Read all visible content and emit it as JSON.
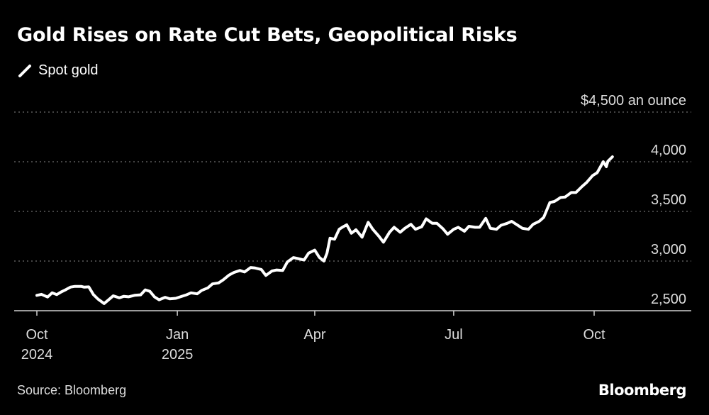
{
  "title": "Gold Rises on Rate Cut Bets, Geopolitical Risks",
  "legend": {
    "label": "Spot gold",
    "color": "#ffffff"
  },
  "source": "Source: Bloomberg",
  "brand": "Bloomberg",
  "chart_data": {
    "type": "line",
    "title": "Gold Rises on Rate Cut Bets, Geopolitical Risks",
    "ylabel": "$4,500 an ounce",
    "ylim": [
      2500,
      4500
    ],
    "grid": true,
    "legend_position": "top-left",
    "y_ticks": [
      {
        "value": 4500,
        "label": "$4,500 an ounce"
      },
      {
        "value": 4000,
        "label": "4,000"
      },
      {
        "value": 3500,
        "label": "3,500"
      },
      {
        "value": 3000,
        "label": "3,000"
      },
      {
        "value": 2500,
        "label": "2,500"
      }
    ],
    "x_ticks": [
      {
        "date": "2024-10-01",
        "label": "Oct",
        "sublabel": "2024"
      },
      {
        "date": "2025-01-01",
        "label": "Jan",
        "sublabel": "2025"
      },
      {
        "date": "2025-04-01",
        "label": "Apr",
        "sublabel": ""
      },
      {
        "date": "2025-07-01",
        "label": "Jul",
        "sublabel": ""
      },
      {
        "date": "2025-10-01",
        "label": "Oct",
        "sublabel": ""
      }
    ],
    "xlim": [
      "2024-10-01",
      "2025-11-30"
    ],
    "series": [
      {
        "name": "Spot gold",
        "color": "#ffffff",
        "x": [
          "2024-10-01",
          "2024-10-04",
          "2024-10-08",
          "2024-10-11",
          "2024-10-14",
          "2024-10-17",
          "2024-10-20",
          "2024-10-23",
          "2024-10-26",
          "2024-10-30",
          "2024-11-01",
          "2024-11-04",
          "2024-11-07",
          "2024-11-10",
          "2024-11-14",
          "2024-11-17",
          "2024-11-20",
          "2024-11-24",
          "2024-11-27",
          "2024-11-30",
          "2024-12-04",
          "2024-12-08",
          "2024-12-11",
          "2024-12-14",
          "2024-12-17",
          "2024-12-20",
          "2024-12-24",
          "2024-12-27",
          "2024-12-31",
          "2025-01-03",
          "2025-01-07",
          "2025-01-10",
          "2025-01-14",
          "2025-01-17",
          "2025-01-21",
          "2025-01-24",
          "2025-01-28",
          "2025-01-31",
          "2025-02-04",
          "2025-02-07",
          "2025-02-11",
          "2025-02-14",
          "2025-02-18",
          "2025-02-21",
          "2025-02-25",
          "2025-02-28",
          "2025-03-04",
          "2025-03-07",
          "2025-03-11",
          "2025-03-14",
          "2025-03-18",
          "2025-03-21",
          "2025-03-25",
          "2025-03-28",
          "2025-04-01",
          "2025-04-04",
          "2025-04-07",
          "2025-04-09",
          "2025-04-11",
          "2025-04-14",
          "2025-04-17",
          "2025-04-19",
          "2025-04-22",
          "2025-04-25",
          "2025-04-28",
          "2025-05-02",
          "2025-05-06",
          "2025-05-09",
          "2025-05-13",
          "2025-05-16",
          "2025-05-20",
          "2025-05-23",
          "2025-05-27",
          "2025-05-30",
          "2025-06-03",
          "2025-06-06",
          "2025-06-10",
          "2025-06-13",
          "2025-06-17",
          "2025-06-20",
          "2025-06-24",
          "2025-06-27",
          "2025-07-01",
          "2025-07-04",
          "2025-07-08",
          "2025-07-11",
          "2025-07-15",
          "2025-07-18",
          "2025-07-22",
          "2025-07-25",
          "2025-07-29",
          "2025-08-01",
          "2025-08-05",
          "2025-08-08",
          "2025-08-12",
          "2025-08-15",
          "2025-08-19",
          "2025-08-22",
          "2025-08-26",
          "2025-08-29",
          "2025-09-02",
          "2025-09-05",
          "2025-09-09",
          "2025-09-12",
          "2025-09-16",
          "2025-09-19",
          "2025-09-23",
          "2025-09-26",
          "2025-09-30",
          "2025-10-03",
          "2025-10-07",
          "2025-10-09",
          "2025-10-10",
          "2025-10-13"
        ],
        "y": [
          2655,
          2665,
          2638,
          2680,
          2662,
          2690,
          2712,
          2738,
          2745,
          2745,
          2737,
          2740,
          2663,
          2618,
          2572,
          2610,
          2650,
          2630,
          2645,
          2640,
          2655,
          2660,
          2710,
          2695,
          2640,
          2610,
          2635,
          2620,
          2625,
          2640,
          2660,
          2680,
          2670,
          2705,
          2730,
          2770,
          2780,
          2810,
          2860,
          2885,
          2905,
          2890,
          2935,
          2930,
          2915,
          2855,
          2900,
          2910,
          2905,
          2990,
          3035,
          3025,
          3010,
          3080,
          3110,
          3037,
          3000,
          3080,
          3230,
          3220,
          3320,
          3340,
          3365,
          3280,
          3315,
          3240,
          3390,
          3320,
          3250,
          3190,
          3290,
          3340,
          3290,
          3330,
          3370,
          3320,
          3345,
          3425,
          3380,
          3380,
          3325,
          3270,
          3320,
          3340,
          3300,
          3350,
          3340,
          3340,
          3430,
          3330,
          3320,
          3360,
          3380,
          3400,
          3360,
          3330,
          3320,
          3370,
          3400,
          3440,
          3590,
          3600,
          3640,
          3645,
          3690,
          3690,
          3750,
          3790,
          3860,
          3890,
          4000,
          3950,
          4005,
          4050
        ]
      }
    ]
  }
}
